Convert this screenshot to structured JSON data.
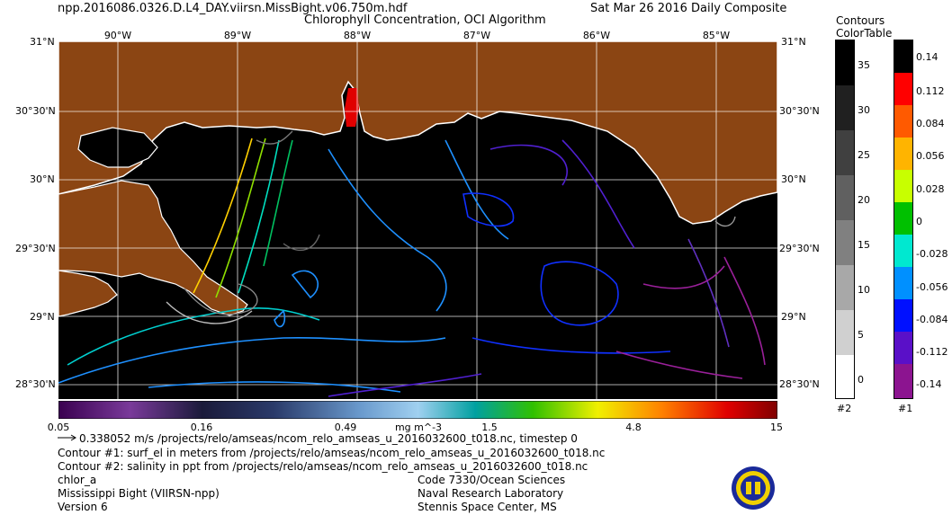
{
  "header": {
    "filename": "npp.2016086.0326.D.L4_DAY.viirsn.MissBight.v06.750m.hdf",
    "title": "Chlorophyll Concentration, OCI Algorithm",
    "composite": "Sat Mar 26 2016 Daily Composite"
  },
  "map": {
    "lat_labels_left": [
      "31°N",
      "30°30'N",
      "30°N",
      "29°30'N",
      "29°N",
      "28°30'N"
    ],
    "lat_labels_right": [
      "31°N",
      "30°30'N",
      "30°N",
      "29°30'N",
      "29°N",
      "28°30'N"
    ],
    "lon_labels": [
      "90°W",
      "89°W",
      "88°W",
      "87°W",
      "86°W",
      "85°W"
    ],
    "colors": {
      "land": "#8b4513",
      "ocean": "#000000",
      "grid": "#ffffff"
    }
  },
  "colorbar": {
    "ticks": [
      "0.05",
      "0.16",
      "0.49",
      "1.5",
      "4.8",
      "15"
    ],
    "units": "mg m^-3"
  },
  "legends": {
    "title_line1": "Contours",
    "title_line2": "ColorTable",
    "salinity": {
      "labels": [
        "35",
        "30",
        "25",
        "20",
        "15",
        "10",
        "5",
        "0"
      ],
      "id": "#2"
    },
    "surf_el": {
      "labels": [
        "0.14",
        "0.112",
        "0.084",
        "0.056",
        "0.028",
        "0",
        "-0.028",
        "-0.056",
        "-0.084",
        "-0.112",
        "-0.14"
      ],
      "id": "#1"
    }
  },
  "footer": {
    "vector_line": "0.338052 m/s /projects/relo/amseas/ncom_relo_amseas_u_2016032600_t018.nc, timestep 0",
    "contour1": "Contour #1: surf_el in meters from /projects/relo/amseas/ncom_relo_amseas_u_2016032600_t018.nc",
    "contour2": "Contour #2: salinity in ppt from /projects/relo/amseas/ncom_relo_amseas_u_2016032600_t018.nc",
    "product": "chlor_a",
    "region": "Mississippi Bight (VIIRSN-npp)",
    "version": "Version 6",
    "org1": "Code 7330/Ocean Sciences",
    "org2": "Naval Research Laboratory",
    "org3": "Stennis Space Center, MS"
  }
}
